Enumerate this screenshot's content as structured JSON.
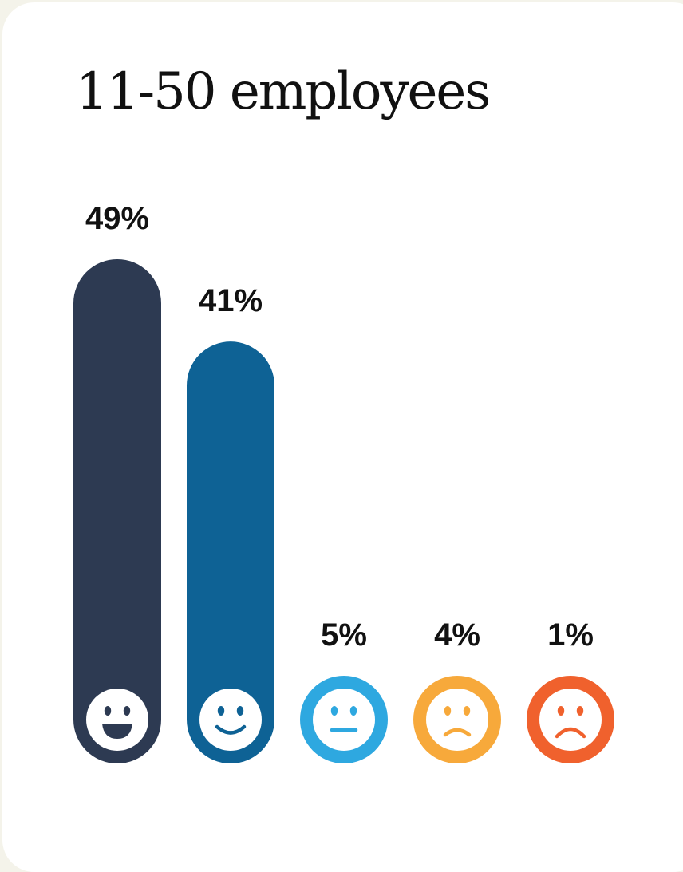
{
  "title": "11-50 employees",
  "chart_data": {
    "type": "bar",
    "categories": [
      "very-satisfied",
      "satisfied",
      "neutral",
      "dissatisfied",
      "very-dissatisfied"
    ],
    "values": [
      49,
      41,
      5,
      4,
      1
    ],
    "value_labels": [
      "49%",
      "41%",
      "5%",
      "4%",
      "1%"
    ],
    "icons": [
      "grin-face-icon",
      "smile-face-icon",
      "neutral-face-icon",
      "frown-face-icon",
      "sad-face-icon"
    ],
    "colors": [
      "#2d3a52",
      "#0e6295",
      "#2ea8e0",
      "#f7a93b",
      "#f0612d"
    ],
    "ylim": [
      0,
      49
    ]
  }
}
